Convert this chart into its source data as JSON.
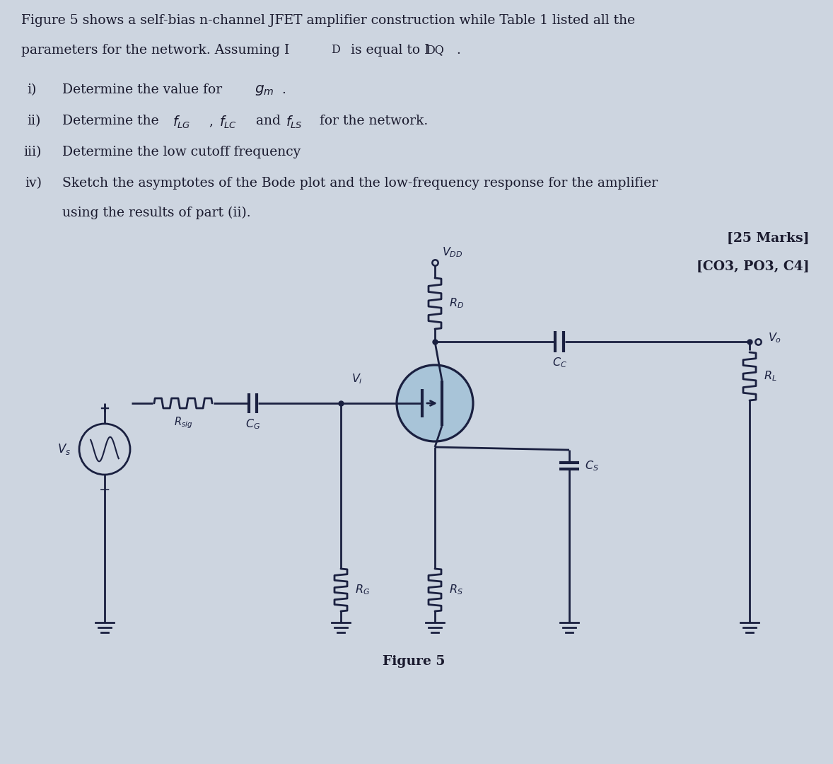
{
  "bg_color": "#cdd5e0",
  "text_color": "#1a1a2e",
  "circuit_color": "#1a2040",
  "jfet_fill": "#a8c4d8",
  "line_width": 2.0,
  "title_text": "Figure 5",
  "marks_text": "[25 Marks]",
  "co_text": "[CO3, PO3, C4]"
}
